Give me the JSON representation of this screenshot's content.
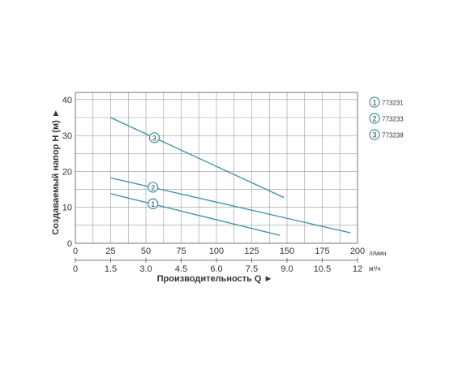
{
  "chart_data": {
    "type": "line",
    "title": "",
    "ylabel": "Создаваемый напор H (м) ►",
    "xlabel": "Производительность Q ►",
    "x_unit_primary": "л/мин",
    "x_unit_secondary": "м³/ч",
    "x_ticks_primary": [
      "0",
      "25",
      "50",
      "75",
      "100",
      "125",
      "150",
      "175",
      "200"
    ],
    "x_ticks_secondary": [
      "0",
      "1.5",
      "3.0",
      "4.5",
      "6.0",
      "7.5",
      "9.0",
      "10.5",
      "12"
    ],
    "y_ticks": [
      "0",
      "10",
      "20",
      "30",
      "40"
    ],
    "xlim": [
      0,
      200
    ],
    "ylim": [
      0,
      42
    ],
    "grid": true,
    "legend_position": "right",
    "series": [
      {
        "name": "773231",
        "marker": "1",
        "x": [
          25,
          145
        ],
        "y": [
          13.8,
          2.2
        ],
        "marker_x": 55,
        "marker_y": 11.0
      },
      {
        "name": "773233",
        "marker": "2",
        "x": [
          25,
          195
        ],
        "y": [
          18.2,
          2.9
        ],
        "marker_x": 55,
        "marker_y": 15.6
      },
      {
        "name": "773238",
        "marker": "3",
        "x": [
          25,
          148
        ],
        "y": [
          35.0,
          12.7
        ],
        "marker_x": 56,
        "marker_y": 29.4
      }
    ],
    "colors": {
      "line": "#3a8ea5",
      "grid": "#999999",
      "axis": "#555555",
      "text": "#333333"
    }
  }
}
